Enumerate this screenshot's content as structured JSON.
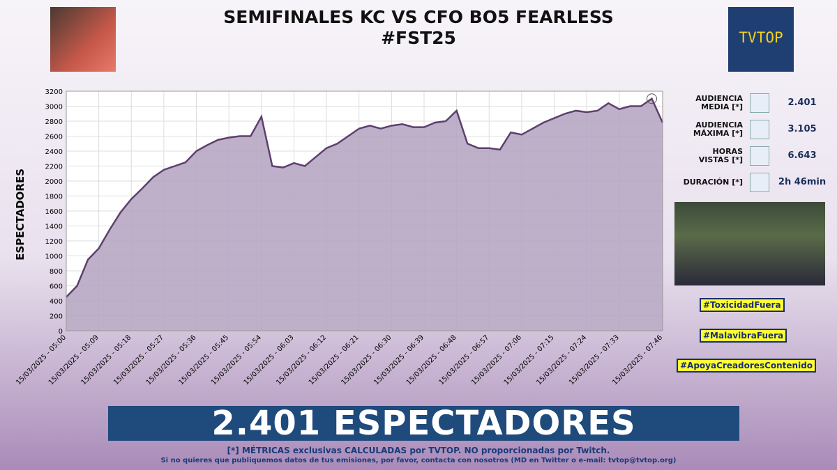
{
  "header": {
    "title_lines": [
      "SEMIFINALES KC VS CFO BO5 FEARLESS",
      "#FST25"
    ],
    "logo": "TVTOP"
  },
  "chart_data": {
    "type": "area",
    "y_label": "ESPECTADORES",
    "color": "#5e3f6e",
    "fill": "#b3a2bf",
    "categories": [
      "15/03/2025 - 05:00",
      null,
      null,
      "15/03/2025 - 05:09",
      null,
      null,
      "15/03/2025 - 05:18",
      null,
      null,
      "15/03/2025 - 05:27",
      null,
      null,
      "15/03/2025 - 05:36",
      null,
      null,
      "15/03/2025 - 05:45",
      null,
      null,
      "15/03/2025 - 05:54",
      null,
      null,
      "15/03/2025 - 06:03",
      null,
      null,
      "15/03/2025 - 06:12",
      null,
      null,
      "15/03/2025 - 06:21",
      null,
      null,
      "15/03/2025 - 06:30",
      null,
      null,
      "15/03/2025 - 06:39",
      null,
      null,
      "15/03/2025 - 06:48",
      null,
      null,
      "15/03/2025 - 06:57",
      null,
      null,
      "15/03/2025 - 07:06",
      null,
      null,
      "15/03/2025 - 07:15",
      null,
      null,
      "15/03/2025 - 07:24",
      null,
      null,
      "15/03/2025 - 07:33",
      null,
      null,
      null,
      "15/03/2025 - 07:46"
    ],
    "values": [
      450,
      600,
      950,
      1100,
      1350,
      1580,
      1760,
      1900,
      2050,
      2150,
      2200,
      2250,
      2400,
      2480,
      2550,
      2580,
      2600,
      2600,
      2860,
      2200,
      2180,
      2240,
      2200,
      2320,
      2440,
      2500,
      2600,
      2700,
      2740,
      2700,
      2740,
      2760,
      2720,
      2720,
      2780,
      2800,
      2940,
      2500,
      2440,
      2440,
      2420,
      2650,
      2620,
      2700,
      2780,
      2840,
      2900,
      2940,
      2920,
      2940,
      3040,
      2960,
      3000,
      3000,
      3100,
      2780
    ],
    "ylim": [
      0,
      3200
    ],
    "yticks": [
      0,
      200,
      400,
      600,
      800,
      1000,
      1200,
      1400,
      1600,
      1800,
      2000,
      2200,
      2400,
      2600,
      2800,
      3000,
      3200
    ],
    "grid": true
  },
  "stats": [
    {
      "label": [
        "AUDIENCIA",
        "MEDIA [*]"
      ],
      "value": "2.401"
    },
    {
      "label": [
        "AUDIENCIA",
        "MÁXIMA [*]"
      ],
      "value": "3.105"
    },
    {
      "label": [
        "HORAS",
        "VISTAS [*]"
      ],
      "value": "6.643"
    },
    {
      "label": [
        "DURACIÓN [*]"
      ],
      "value": "2h 46min"
    }
  ],
  "hashtags": [
    "#ToxicidadFuera",
    "#MalavibraFuera",
    "#ApoyaCreadoresContenido"
  ],
  "banner": "2.401 ESPECTADORES",
  "footer": [
    "[*] MÉTRICAS exclusivas CALCULADAS por TVTOP. NO proporcionadas por Twitch.",
    "Si no quieres que publiquemos datos de tus emisiones, por favor, contacta con nosotros (MD en Twitter o e-mail: tvtop@tvtop.org)"
  ]
}
